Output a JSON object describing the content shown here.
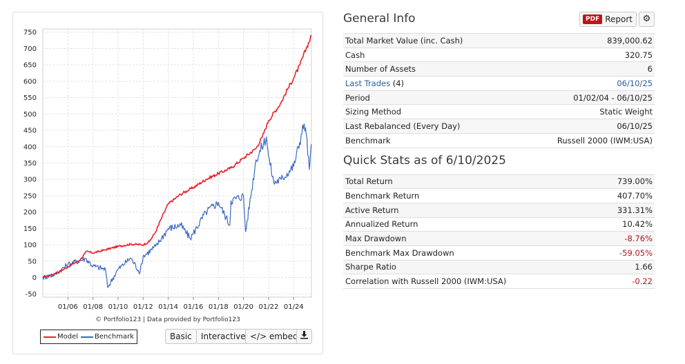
{
  "chart_data": {
    "type": "line",
    "x_ticks": [
      "01/06",
      "01/08",
      "01/10",
      "01/12",
      "01/14",
      "01/16",
      "01/18",
      "01/20",
      "01/22",
      "01/24"
    ],
    "y_ticks": [
      -50,
      0,
      50,
      100,
      150,
      200,
      250,
      300,
      350,
      400,
      450,
      500,
      550,
      600,
      650,
      700,
      750
    ],
    "ylim": [
      -60,
      760
    ],
    "xlim": [
      "01/04",
      "06/25"
    ],
    "grid": true,
    "legend_position": "bottom-left",
    "series": [
      {
        "name": "Model",
        "color": "#e8202a",
        "x": [
          "01/04",
          "01/05",
          "01/06",
          "01/07",
          "07/07",
          "01/08",
          "01/09",
          "01/10",
          "01/11",
          "01/12",
          "07/12",
          "01/13",
          "07/13",
          "01/14",
          "01/15",
          "01/16",
          "01/17",
          "01/18",
          "01/19",
          "01/20",
          "01/21",
          "07/21",
          "01/22",
          "01/23",
          "07/23",
          "01/24",
          "07/24",
          "01/25",
          "06/25"
        ],
        "values": [
          0,
          12,
          32,
          55,
          80,
          75,
          85,
          95,
          102,
          100,
          110,
          140,
          185,
          225,
          255,
          275,
          300,
          318,
          335,
          365,
          395,
          430,
          480,
          535,
          575,
          610,
          650,
          700,
          739
        ]
      },
      {
        "name": "Benchmark",
        "color": "#3a66c4",
        "x": [
          "01/04",
          "01/05",
          "01/06",
          "06/07",
          "01/08",
          "01/09",
          "03/09",
          "01/10",
          "01/11",
          "10/11",
          "01/12",
          "01/13",
          "01/14",
          "01/15",
          "10/15",
          "01/16",
          "01/17",
          "01/18",
          "12/18",
          "01/19",
          "01/20",
          "03/20",
          "01/21",
          "11/21",
          "01/22",
          "06/22",
          "01/23",
          "01/24",
          "11/24",
          "01/25",
          "04/25",
          "06/25"
        ],
        "values": [
          0,
          10,
          40,
          58,
          35,
          25,
          -30,
          25,
          60,
          15,
          65,
          95,
          150,
          160,
          120,
          135,
          200,
          230,
          160,
          235,
          250,
          140,
          360,
          430,
          370,
          290,
          300,
          340,
          470,
          440,
          330,
          408
        ]
      }
    ]
  },
  "chart": {
    "credit": "© Portfolio123 | Data provided by Portfolio123",
    "legend": {
      "model": "Model",
      "benchmark": "Benchmark"
    },
    "buttons": {
      "basic": "Basic",
      "interactive": "Interactive",
      "embed": "</> embed"
    }
  },
  "general_info": {
    "title": "General Info",
    "pdf_tag": "PDF",
    "report_label": "Report",
    "rows": [
      {
        "label": "Total Market Value (inc. Cash)",
        "value": "839,000.62"
      },
      {
        "label": "Cash",
        "value": "320.75"
      },
      {
        "label": "Number of Assets",
        "value": "6"
      },
      {
        "label": "Last Trades",
        "label_suffix": " (4)",
        "value": "06/10/25"
      },
      {
        "label": "Period",
        "value": "01/02/04 - 06/10/25"
      },
      {
        "label": "Sizing Method",
        "value": "Static Weight"
      },
      {
        "label": "Last Rebalanced (Every Day)",
        "value": "06/10/25"
      },
      {
        "label": "Benchmark",
        "value": "Russell 2000 (IWM:USA)"
      }
    ]
  },
  "quick_stats": {
    "title": "Quick Stats as of 6/10/2025",
    "rows": [
      {
        "label": "Total Return",
        "value": "739.00%"
      },
      {
        "label": "Benchmark Return",
        "value": "407.70%"
      },
      {
        "label": "Active Return",
        "value": "331.31%"
      },
      {
        "label": "Annualized Return",
        "value": "10.42%"
      },
      {
        "label": "Max Drawdown",
        "value": "-8.76%"
      },
      {
        "label": "Benchmark Max Drawdown",
        "value": "-59.05%"
      },
      {
        "label": "Sharpe Ratio",
        "value": "1.66"
      },
      {
        "label": "Correlation with Russell 2000 (IWM:USA)",
        "value": "-0.22"
      }
    ]
  },
  "colors": {
    "negative": "#b5121b",
    "link": "#2a5c9a",
    "pdf_badge": "#c0141b"
  }
}
